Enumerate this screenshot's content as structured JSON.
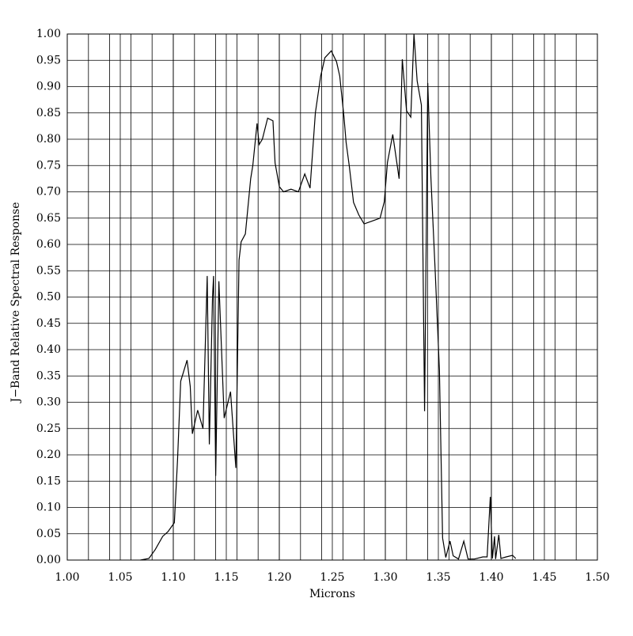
{
  "chart_data": {
    "type": "line",
    "xlabel": "Microns",
    "ylabel": "J−Band Relative Spectral Response",
    "color": "#000000",
    "x": [
      1.069,
      1.077,
      1.083,
      1.09,
      1.095,
      1.101,
      1.104,
      1.107,
      1.113,
      1.116,
      1.118,
      1.123,
      1.128,
      1.132,
      1.134,
      1.137,
      1.138,
      1.14,
      1.143,
      1.148,
      1.154,
      1.159,
      1.162,
      1.164,
      1.168,
      1.173,
      1.175,
      1.179,
      1.181,
      1.184,
      1.189,
      1.194,
      1.196,
      1.2,
      1.204,
      1.211,
      1.218,
      1.224,
      1.229,
      1.234,
      1.239,
      1.243,
      1.249,
      1.254,
      1.257,
      1.261,
      1.263,
      1.266,
      1.27,
      1.275,
      1.28,
      1.287,
      1.295,
      1.299,
      1.302,
      1.307,
      1.313,
      1.316,
      1.32,
      1.324,
      1.327,
      1.33,
      1.334,
      1.337,
      1.34,
      1.343,
      1.347,
      1.351,
      1.354,
      1.357,
      1.361,
      1.364,
      1.369,
      1.374,
      1.378,
      1.384,
      1.392,
      1.396,
      1.399,
      1.401,
      1.403,
      1.404,
      1.407,
      1.409,
      1.414,
      1.42,
      1.423
    ],
    "values": [
      0.0,
      0.003,
      0.02,
      0.045,
      0.054,
      0.071,
      0.19,
      0.34,
      0.38,
      0.33,
      0.24,
      0.285,
      0.25,
      0.54,
      0.22,
      0.5,
      0.54,
      0.16,
      0.53,
      0.27,
      0.32,
      0.175,
      0.57,
      0.605,
      0.62,
      0.725,
      0.75,
      0.83,
      0.79,
      0.8,
      0.84,
      0.835,
      0.755,
      0.71,
      0.7,
      0.705,
      0.7,
      0.734,
      0.707,
      0.85,
      0.92,
      0.955,
      0.968,
      0.947,
      0.92,
      0.842,
      0.794,
      0.749,
      0.68,
      0.656,
      0.639,
      0.644,
      0.65,
      0.681,
      0.756,
      0.809,
      0.725,
      0.952,
      0.854,
      0.842,
      1.0,
      0.911,
      0.865,
      0.283,
      0.907,
      0.726,
      0.55,
      0.361,
      0.042,
      0.005,
      0.036,
      0.008,
      0.002,
      0.036,
      0.002,
      0.002,
      0.006,
      0.006,
      0.12,
      0.003,
      0.045,
      0.002,
      0.048,
      0.003,
      0.006,
      0.009,
      0.003
    ],
    "xlim": [
      1.0,
      1.5
    ],
    "ylim": [
      0,
      1.0
    ],
    "xticks": [
      {
        "value": 1.0,
        "label": "1.00"
      },
      {
        "value": 1.05,
        "label": "1.05"
      },
      {
        "value": 1.1,
        "label": "1.10"
      },
      {
        "value": 1.15,
        "label": "1.15"
      },
      {
        "value": 1.2,
        "label": "1.20"
      },
      {
        "value": 1.25,
        "label": "1.25"
      },
      {
        "value": 1.3,
        "label": "1.30"
      },
      {
        "value": 1.35,
        "label": "1.35"
      },
      {
        "value": 1.4,
        "label": "1.40"
      },
      {
        "value": 1.45,
        "label": "1.45"
      },
      {
        "value": 1.5,
        "label": "1.50"
      }
    ],
    "yticks": [
      {
        "value": 0,
        "label": "0.00"
      },
      {
        "value": 0.05,
        "label": "0.05"
      },
      {
        "value": 0.1,
        "label": "0.10"
      },
      {
        "value": 0.15,
        "label": "0.15"
      },
      {
        "value": 0.2,
        "label": "0.20"
      },
      {
        "value": 0.25,
        "label": "0.25"
      },
      {
        "value": 0.3,
        "label": "0.30"
      },
      {
        "value": 0.35,
        "label": "0.35"
      },
      {
        "value": 0.4,
        "label": "0.40"
      },
      {
        "value": 0.45,
        "label": "0.45"
      },
      {
        "value": 0.5,
        "label": "0.50"
      },
      {
        "value": 0.55,
        "label": "0.55"
      },
      {
        "value": 0.6,
        "label": "0.60"
      },
      {
        "value": 0.65,
        "label": "0.65"
      },
      {
        "value": 0.7,
        "label": "0.70"
      },
      {
        "value": 0.75,
        "label": "0.75"
      },
      {
        "value": 0.8,
        "label": "0.80"
      },
      {
        "value": 0.85,
        "label": "0.85"
      },
      {
        "value": 0.9,
        "label": "0.90"
      },
      {
        "value": 0.95,
        "label": "0.95"
      },
      {
        "value": 1.0,
        "label": "1.00"
      }
    ],
    "xgrid": [
      1.02,
      1.04,
      1.06,
      1.08,
      1.1,
      1.12,
      1.14,
      1.16,
      1.18,
      1.2,
      1.22,
      1.24,
      1.26,
      1.28,
      1.3,
      1.32,
      1.34,
      1.36,
      1.38,
      1.4,
      1.42,
      1.44,
      1.46,
      1.48
    ],
    "grid": true
  }
}
